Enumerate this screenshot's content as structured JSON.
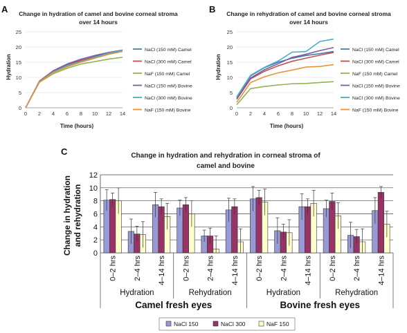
{
  "chart_data": [
    {
      "panel": "A",
      "type": "line",
      "title": "Change in hydration of camel and bovine corneal stroma over 14 hours",
      "title_lines": [
        "Change in hydration of camel and bovine corneal stroma",
        "over 14 hours"
      ],
      "xlabel": "Time (hours)",
      "ylabel": "Hydration",
      "x": [
        0,
        2,
        4,
        6,
        8,
        10,
        12,
        14
      ],
      "xlim": [
        0,
        14
      ],
      "ylim": [
        0,
        25
      ],
      "yticks": [
        0,
        5,
        10,
        15,
        20,
        25
      ],
      "grid": "horizontal",
      "legend": "right",
      "series": [
        {
          "name": "NaCl (150 mM) Camel",
          "color": "#3f7fb0",
          "values": [
            0,
            8.6,
            11.8,
            13.8,
            15.6,
            16.8,
            18.2,
            18.9
          ]
        },
        {
          "name": "NaCl (300 mM) Camel",
          "color": "#c0504d",
          "values": [
            0,
            8.7,
            12.0,
            14.2,
            15.6,
            16.7,
            17.6,
            19.0
          ]
        },
        {
          "name": "NaF (150 mM) Camel",
          "color": "#8fb34f",
          "values": [
            0,
            8.4,
            11.2,
            13.0,
            14.4,
            15.2,
            16.0,
            16.6
          ]
        },
        {
          "name": "NaCl (150 mM) Bovine",
          "color": "#7b5aa6",
          "values": [
            0,
            8.8,
            12.2,
            14.4,
            16.0,
            17.2,
            18.2,
            19.0
          ]
        },
        {
          "name": "NaCl (300 mM) Bovine",
          "color": "#4bacc6",
          "values": [
            0,
            8.5,
            11.8,
            13.9,
            15.2,
            16.6,
            18.0,
            18.9
          ]
        },
        {
          "name": "NaF (150 mM) Bovine",
          "color": "#e8923a",
          "values": [
            0,
            8.6,
            11.6,
            13.5,
            15.0,
            16.3,
            17.6,
            18.5
          ]
        }
      ]
    },
    {
      "panel": "B",
      "type": "line",
      "title": "Change in rehydration of camel and bovine corneal stroma over 14 hours",
      "title_lines": [
        "Change in rehydration of camel and bovine corneal stroma",
        "over 14 hours"
      ],
      "xlabel": "Time (hours)",
      "ylabel": "Hydration",
      "x": [
        0,
        2,
        4,
        6,
        8,
        10,
        12,
        14
      ],
      "xlim": [
        0,
        14
      ],
      "ylim": [
        0,
        25
      ],
      "yticks": [
        0,
        5,
        10,
        15,
        20,
        25
      ],
      "grid": "horizontal",
      "legend": "right",
      "series": [
        {
          "name": "NaCl (150 mM) Camel",
          "color": "#3f7fb0",
          "values": [
            3.5,
            10.5,
            13.2,
            15.0,
            16.3,
            17.2,
            17.8,
            18.5
          ]
        },
        {
          "name": "NaCl (300 mM) Camel",
          "color": "#c0504d",
          "values": [
            2.8,
            9.5,
            12.0,
            13.8,
            15.3,
            16.3,
            17.3,
            18.2
          ]
        },
        {
          "name": "NaF (150 mM) Camel",
          "color": "#8fb34f",
          "values": [
            1.0,
            6.3,
            7.0,
            7.5,
            7.9,
            8.0,
            8.3,
            8.6
          ]
        },
        {
          "name": "NaCl (150 mM) Bovine",
          "color": "#7b5aa6",
          "values": [
            3.0,
            9.8,
            12.5,
            14.5,
            16.6,
            17.6,
            18.8,
            19.8
          ]
        },
        {
          "name": "NaCl (300 mM) Bovine",
          "color": "#4bacc6",
          "values": [
            3.6,
            10.7,
            13.3,
            15.4,
            18.3,
            18.5,
            21.8,
            22.6
          ]
        },
        {
          "name": "NaF (150 mM) Bovine",
          "color": "#e8923a",
          "values": [
            1.8,
            8.3,
            10.2,
            11.5,
            12.4,
            13.4,
            13.6,
            14.2
          ]
        }
      ]
    },
    {
      "panel": "C",
      "type": "bar",
      "title": "Change in hydration and rehydration in corneal stroma of camel and bovine",
      "title_lines": [
        "Change in hydration and rehydration in corneal stroma of",
        "camel and bovine"
      ],
      "ylabel_lines": [
        "Change in hydration",
        "and rehydration"
      ],
      "ylim": [
        0,
        12
      ],
      "yticks": [
        0,
        2,
        4,
        6,
        8,
        10,
        12
      ],
      "grid": "horizontal",
      "legend": "bottom",
      "categories": [
        "0–2 hrs",
        "2–4 hrs",
        "4–14 hrs",
        "0–2 hrs",
        "2–4 hrs",
        "4–14 hrs",
        "0–2 hrs",
        "2–4 hrs",
        "4–14 hrs",
        "0–2 hrs",
        "2–4 hrs",
        "4–14 hrs"
      ],
      "groups": [
        "Hydration",
        "Rehydration",
        "Hydration",
        "Rehydration"
      ],
      "supergroups": [
        "Camel fresh eyes",
        "Bovine fresh eyes"
      ],
      "series": [
        {
          "name": "NaCl 150",
          "color": "#9999d6",
          "values": [
            8.1,
            3.3,
            7.4,
            6.9,
            2.6,
            6.6,
            8.3,
            3.4,
            7.1,
            6.8,
            2.7,
            6.5
          ],
          "errors": [
            1.6,
            1.9,
            1.9,
            1.2,
            0.9,
            1.8,
            1.9,
            2.0,
            2.0,
            1.3,
            2.0,
            2.0
          ]
        },
        {
          "name": "NaCl 300",
          "color": "#993366",
          "values": [
            8.2,
            2.9,
            7.1,
            7.4,
            2.6,
            7.1,
            8.5,
            3.2,
            7.1,
            7.9,
            2.5,
            9.3
          ],
          "errors": [
            1.0,
            1.2,
            1.2,
            1.1,
            1.2,
            1.2,
            1.1,
            1.2,
            1.2,
            1.3,
            1.1,
            0.9
          ]
        },
        {
          "name": "NaF 150",
          "color": "#ffffcc",
          "values": [
            8.0,
            2.8,
            5.6,
            6.0,
            0.6,
            1.7,
            7.8,
            3.1,
            7.6,
            5.7,
            1.7,
            4.4
          ],
          "errors": [
            2.0,
            2.0,
            2.0,
            2.0,
            2.0,
            2.0,
            2.0,
            2.0,
            2.0,
            2.0,
            2.0,
            2.0
          ]
        }
      ]
    }
  ],
  "panel_labels": [
    "A",
    "B",
    "C"
  ]
}
